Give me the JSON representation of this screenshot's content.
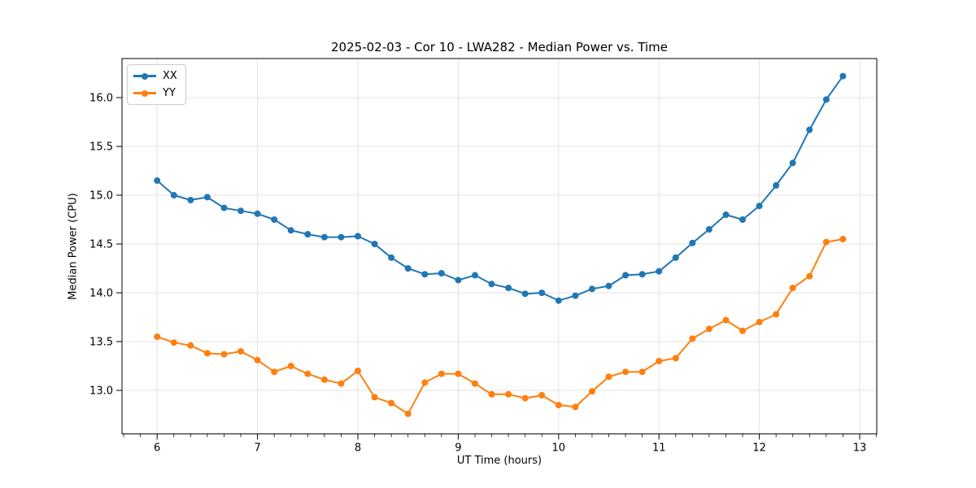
{
  "figure": {
    "background": "#ffffff"
  },
  "chart_data": {
    "type": "line",
    "title": "2025-02-03 - Cor 10 - LWA282 - Median Power vs. Time",
    "xlabel": "UT Time (hours)",
    "ylabel": "Median Power (CPU)",
    "xlim": [
      5.65,
      13.17
    ],
    "ylim": [
      12.555,
      16.4
    ],
    "grid": true,
    "legend_position": "upper left",
    "x_major_ticks": [
      6,
      7,
      8,
      9,
      10,
      11,
      12,
      13
    ],
    "x_tick_labels": [
      "6",
      "7",
      "8",
      "9",
      "10",
      "11",
      "12",
      "13"
    ],
    "x_minor_tick_step_hours": 0.1667,
    "y_major_ticks": [
      13.0,
      13.5,
      14.0,
      14.5,
      15.0,
      15.5,
      16.0
    ],
    "y_tick_labels": [
      "13.0",
      "13.5",
      "14.0",
      "14.5",
      "15.0",
      "15.5",
      "16.0"
    ],
    "x": [
      6.0,
      6.167,
      6.333,
      6.5,
      6.667,
      6.833,
      7.0,
      7.167,
      7.333,
      7.5,
      7.667,
      7.833,
      8.0,
      8.167,
      8.333,
      8.5,
      8.667,
      8.833,
      9.0,
      9.167,
      9.333,
      9.5,
      9.667,
      9.833,
      10.0,
      10.167,
      10.333,
      10.5,
      10.667,
      10.833,
      11.0,
      11.167,
      11.333,
      11.5,
      11.667,
      11.833,
      12.0,
      12.167,
      12.333,
      12.5,
      12.667,
      12.833
    ],
    "series": [
      {
        "name": "XX",
        "color": "#1f77b4",
        "values": [
          15.15,
          15.0,
          14.95,
          14.98,
          14.87,
          14.84,
          14.81,
          14.75,
          14.64,
          14.6,
          14.57,
          14.57,
          14.58,
          14.5,
          14.36,
          14.25,
          14.19,
          14.2,
          14.13,
          14.18,
          14.09,
          14.05,
          13.99,
          14.0,
          13.92,
          13.97,
          14.04,
          14.07,
          14.18,
          14.19,
          14.22,
          14.36,
          14.51,
          14.65,
          14.8,
          14.75,
          14.89,
          15.1,
          15.33,
          15.67,
          15.98,
          16.22
        ]
      },
      {
        "name": "YY",
        "color": "#ff7f0e",
        "values": [
          13.55,
          13.49,
          13.46,
          13.38,
          13.37,
          13.4,
          13.31,
          13.19,
          13.25,
          13.17,
          13.11,
          13.07,
          13.2,
          12.93,
          12.87,
          12.76,
          13.08,
          13.17,
          13.17,
          13.07,
          12.96,
          12.96,
          12.92,
          12.95,
          12.85,
          12.83,
          12.99,
          13.14,
          13.19,
          13.19,
          13.3,
          13.33,
          13.53,
          13.63,
          13.72,
          13.61,
          13.7,
          13.78,
          14.05,
          14.17,
          14.52,
          14.55
        ]
      }
    ]
  },
  "legend": {
    "items": [
      {
        "label": "XX",
        "color": "#1f77b4"
      },
      {
        "label": "YY",
        "color": "#ff7f0e"
      }
    ]
  },
  "style": {
    "grid_color": "#e3e3e3",
    "spine_color": "#000000",
    "tick_color": "#000000"
  }
}
